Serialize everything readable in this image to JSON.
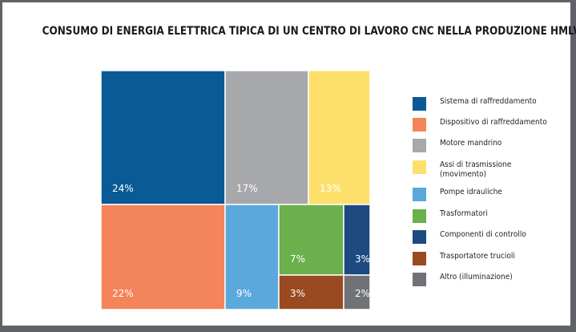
{
  "title": "CONSUMO DI ENERGIA ELETTRICA TIPICA DI UN CENTRO DI LAVORO CNC NELLA PRODUZIONE HMLV",
  "chart_data": {
    "type": "treemap",
    "title": "CONSUMO DI ENERGIA ELETTRICA TIPICA DI UN CENTRO DI LAVORO CNC NELLA PRODUZIONE HMLV",
    "unit": "%",
    "items": [
      {
        "name": "Sistema di raffreddamento",
        "value": 24,
        "label": "24%",
        "color": "#0a5a96"
      },
      {
        "name": "Dispositivo di raffreddamento",
        "value": 22,
        "label": "22%",
        "color": "#f4845a"
      },
      {
        "name": "Motore mandrino",
        "value": 17,
        "label": "17%",
        "color": "#a7a8ab"
      },
      {
        "name": "Assi di trasmissione\n(movimento)",
        "value": 13,
        "label": "13%",
        "color": "#fde06c"
      },
      {
        "name": "Pompe idrauliche",
        "value": 9,
        "label": "9%",
        "color": "#5ba8dc"
      },
      {
        "name": "Trasformatori",
        "value": 7,
        "label": "7%",
        "color": "#6ab04c"
      },
      {
        "name": "Componenti di controllo",
        "value": 3,
        "label": "3%",
        "color": "#1d4b80"
      },
      {
        "name": "Trasportatore trucioli",
        "value": 3,
        "label": "3%",
        "color": "#9a4a20"
      },
      {
        "name": "Altro (illuminazione)",
        "value": 2,
        "label": "2%",
        "color": "#707275"
      }
    ],
    "legend_position": "right"
  }
}
